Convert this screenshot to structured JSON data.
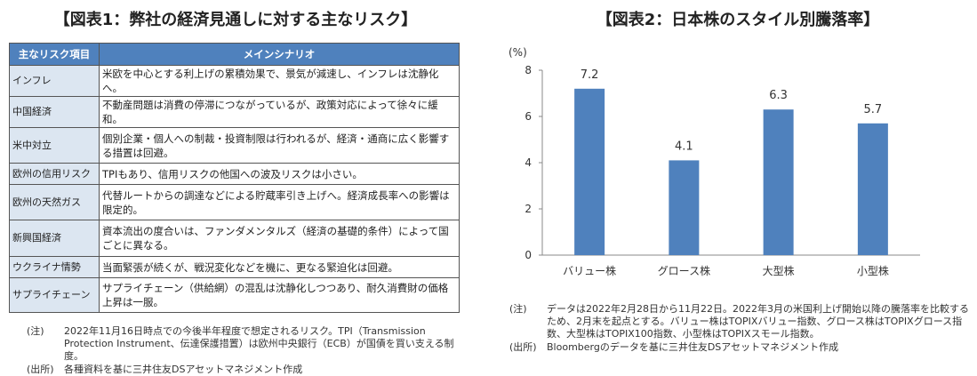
{
  "left": {
    "title": "【図表1：弊社の経済見通しに対する主なリスク】",
    "headers": [
      "主なリスク項目",
      "メインシナリオ"
    ],
    "rows": [
      [
        "インフレ",
        "米欧を中心とする利上げの累積効果で、景気が減速し、インフレは沈静化へ。"
      ],
      [
        "中国経済",
        "不動産問題は消費の停滞につながっているが、政策対応によって徐々に緩和。"
      ],
      [
        "米中対立",
        "個別企業・個人への制裁・投資制限は行われるが、経済・通商に広く影響する措置は回避。"
      ],
      [
        "欧州の信用リスク",
        "TPIもあり、信用リスクの他国への波及リスクは小さい。"
      ],
      [
        "欧州の天然ガス",
        "代替ルートからの調達などによる貯蔵率引き上げへ。経済成長率への影響は限定的。"
      ],
      [
        "新興国経済",
        "資本流出の度合いは、ファンダメンタルズ（経済の基礎的条件）によって国ごとに異なる。"
      ],
      [
        "ウクライナ情勢",
        "当面緊張が続くが、戦況変化などを機に、更なる緊迫化は回避。"
      ],
      [
        "サプライチェーン",
        "サプライチェーン（供給網）の混乱は沈静化しつつあり、耐久消費財の価格上昇は一服。"
      ]
    ],
    "note_label": "(注)",
    "note": "2022年11月16日時点での今後半年程度で想定されるリスク。TPI（Transmission Protection Instrument、伝達保護措置）は欧州中央銀行（ECB）が国債を買い支える制度。",
    "source_label": "(出所)",
    "source": "各種資料を基に三井住友DSアセットマネジメント作成"
  },
  "right": {
    "title": "【図表2：日本株のスタイル別騰落率】",
    "note_label": "(注)",
    "note": "データは2022年2月28日から11月22日。2022年3月の米国利上げ開始以降の騰落率を比較するため、2月末を起点とする。バリュー株はTOPIXバリュー指数、グロース株はTOPIXグロース指数、大型株はTOPIX100指数、小型株はTOPIXスモール指数。",
    "source_label": "(出所)",
    "source": "Bloombergのデータを基に三井住友DSアセットマネジメント作成"
  },
  "chart_data": {
    "type": "bar",
    "categories": [
      "バリュー株",
      "グロース株",
      "大型株",
      "小型株"
    ],
    "values": [
      7.2,
      4.1,
      6.3,
      5.7
    ],
    "labels": [
      "7.2",
      "4.1",
      "6.3",
      "5.7"
    ],
    "ylabel": "(%)",
    "ylim": [
      0,
      8
    ],
    "yticks": [
      "0",
      "2",
      "4",
      "6",
      "8"
    ],
    "bar_color": "#4f81bd"
  }
}
